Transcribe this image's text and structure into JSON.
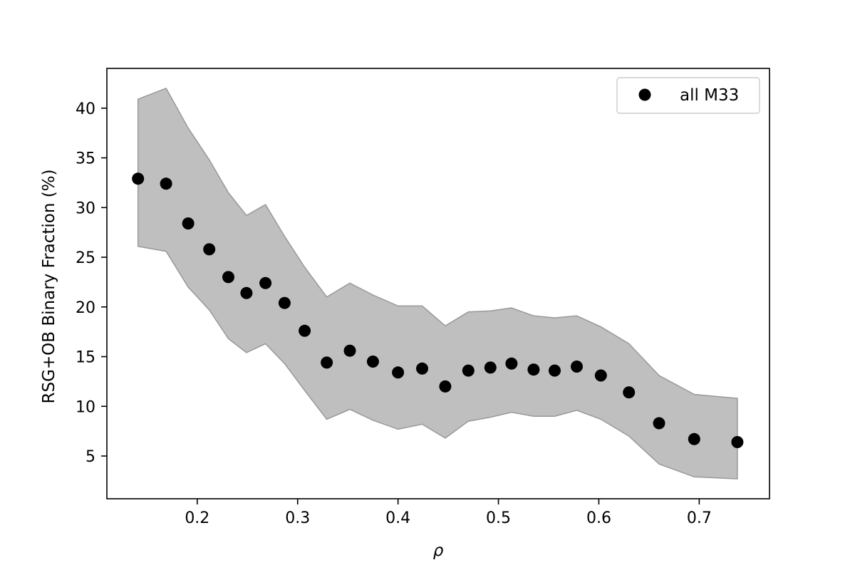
{
  "chart_data": {
    "type": "scatter",
    "title": "",
    "xlabel": "ρ",
    "ylabel": "RSG+OB Binary Fraction (%)",
    "xlim": [
      0.11,
      0.77
    ],
    "ylim": [
      0.7,
      44.0
    ],
    "xticks": [
      0.2,
      0.3,
      0.4,
      0.5,
      0.6,
      0.7
    ],
    "xtick_labels": [
      "0.2",
      "0.3",
      "0.4",
      "0.5",
      "0.6",
      "0.7"
    ],
    "yticks": [
      5,
      10,
      15,
      20,
      25,
      30,
      35,
      40
    ],
    "ytick_labels": [
      "5",
      "10",
      "15",
      "20",
      "25",
      "30",
      "35",
      "40"
    ],
    "grid": false,
    "legend": {
      "position": "top-right",
      "entries": [
        {
          "label": "all M33",
          "marker": "circle",
          "color": "#000000"
        }
      ]
    },
    "series": [
      {
        "name": "all M33",
        "color": "#000000",
        "x": [
          0.141,
          0.169,
          0.191,
          0.212,
          0.231,
          0.249,
          0.268,
          0.287,
          0.307,
          0.329,
          0.352,
          0.375,
          0.4,
          0.424,
          0.447,
          0.47,
          0.492,
          0.513,
          0.535,
          0.556,
          0.578,
          0.602,
          0.63,
          0.66,
          0.695,
          0.738
        ],
        "y": [
          32.9,
          32.4,
          28.4,
          25.8,
          23.0,
          21.4,
          22.4,
          20.4,
          17.6,
          14.4,
          15.6,
          14.5,
          13.4,
          13.8,
          12.0,
          13.6,
          13.9,
          14.3,
          13.7,
          13.6,
          14.0,
          13.1,
          11.4,
          8.3,
          6.7,
          6.4
        ]
      }
    ],
    "band": {
      "color": "#bfbfbf",
      "edge_color": "#999999",
      "x": [
        0.141,
        0.169,
        0.191,
        0.212,
        0.231,
        0.249,
        0.268,
        0.287,
        0.307,
        0.329,
        0.352,
        0.375,
        0.4,
        0.424,
        0.447,
        0.47,
        0.492,
        0.513,
        0.535,
        0.556,
        0.578,
        0.602,
        0.63,
        0.66,
        0.695,
        0.738
      ],
      "upper": [
        40.9,
        42.0,
        38.0,
        34.8,
        31.5,
        29.2,
        30.3,
        27.1,
        24.0,
        21.0,
        22.4,
        21.2,
        20.1,
        20.1,
        18.1,
        19.5,
        19.6,
        19.9,
        19.1,
        18.9,
        19.1,
        18.0,
        16.3,
        13.1,
        11.2,
        10.8
      ],
      "lower": [
        26.1,
        25.6,
        22.0,
        19.7,
        16.8,
        15.4,
        16.3,
        14.3,
        11.6,
        8.7,
        9.7,
        8.6,
        7.7,
        8.2,
        6.8,
        8.5,
        8.9,
        9.4,
        9.0,
        9.0,
        9.6,
        8.7,
        7.0,
        4.2,
        2.9,
        2.7
      ]
    }
  }
}
